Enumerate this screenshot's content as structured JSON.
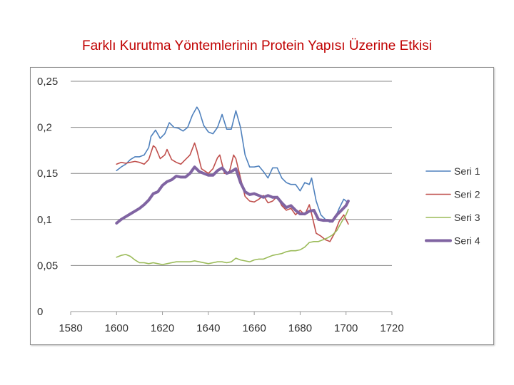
{
  "chart_data": {
    "type": "line",
    "title": "Farklı Kurutma Yöntemlerinin Protein Yapısı Üzerine Etkisi",
    "xlabel": "",
    "ylabel": "",
    "xlim": [
      1580,
      1720
    ],
    "ylim": [
      0,
      0.25
    ],
    "xticks": [
      "1580",
      "1600",
      "1620",
      "1640",
      "1660",
      "1680",
      "1700",
      "1720"
    ],
    "yticks": [
      "0",
      "0,05",
      "0,1",
      "0,15",
      "0,2",
      "0,25"
    ],
    "grid": true,
    "legend": "right",
    "series": [
      {
        "name": "Seri 1",
        "color": "#4f81bd",
        "width": 1.6,
        "points": [
          [
            1600,
            0.153
          ],
          [
            1602,
            0.157
          ],
          [
            1604,
            0.16
          ],
          [
            1606,
            0.165
          ],
          [
            1608,
            0.168
          ],
          [
            1610,
            0.168
          ],
          [
            1612,
            0.17
          ],
          [
            1614,
            0.178
          ],
          [
            1615,
            0.19
          ],
          [
            1617,
            0.197
          ],
          [
            1619,
            0.188
          ],
          [
            1621,
            0.193
          ],
          [
            1623,
            0.205
          ],
          [
            1625,
            0.2
          ],
          [
            1627,
            0.199
          ],
          [
            1629,
            0.196
          ],
          [
            1631,
            0.2
          ],
          [
            1633,
            0.213
          ],
          [
            1635,
            0.222
          ],
          [
            1636,
            0.218
          ],
          [
            1638,
            0.202
          ],
          [
            1640,
            0.195
          ],
          [
            1642,
            0.193
          ],
          [
            1644,
            0.2
          ],
          [
            1646,
            0.214
          ],
          [
            1648,
            0.198
          ],
          [
            1650,
            0.198
          ],
          [
            1652,
            0.218
          ],
          [
            1654,
            0.2
          ],
          [
            1656,
            0.17
          ],
          [
            1658,
            0.157
          ],
          [
            1660,
            0.157
          ],
          [
            1662,
            0.158
          ],
          [
            1664,
            0.152
          ],
          [
            1666,
            0.145
          ],
          [
            1668,
            0.156
          ],
          [
            1670,
            0.156
          ],
          [
            1672,
            0.145
          ],
          [
            1674,
            0.14
          ],
          [
            1676,
            0.138
          ],
          [
            1678,
            0.138
          ],
          [
            1680,
            0.131
          ],
          [
            1682,
            0.14
          ],
          [
            1684,
            0.138
          ],
          [
            1685,
            0.145
          ],
          [
            1687,
            0.12
          ],
          [
            1689,
            0.105
          ],
          [
            1691,
            0.1
          ],
          [
            1693,
            0.097
          ],
          [
            1695,
            0.1
          ],
          [
            1697,
            0.112
          ],
          [
            1699,
            0.122
          ],
          [
            1701,
            0.118
          ]
        ]
      },
      {
        "name": "Seri 2",
        "color": "#c0504d",
        "width": 1.6,
        "points": [
          [
            1600,
            0.16
          ],
          [
            1602,
            0.162
          ],
          [
            1604,
            0.161
          ],
          [
            1606,
            0.162
          ],
          [
            1608,
            0.163
          ],
          [
            1610,
            0.162
          ],
          [
            1612,
            0.16
          ],
          [
            1614,
            0.165
          ],
          [
            1616,
            0.18
          ],
          [
            1617,
            0.178
          ],
          [
            1619,
            0.166
          ],
          [
            1621,
            0.17
          ],
          [
            1622,
            0.176
          ],
          [
            1624,
            0.165
          ],
          [
            1626,
            0.162
          ],
          [
            1628,
            0.16
          ],
          [
            1630,
            0.165
          ],
          [
            1632,
            0.17
          ],
          [
            1634,
            0.183
          ],
          [
            1635,
            0.175
          ],
          [
            1637,
            0.155
          ],
          [
            1640,
            0.15
          ],
          [
            1642,
            0.155
          ],
          [
            1644,
            0.167
          ],
          [
            1645,
            0.17
          ],
          [
            1647,
            0.15
          ],
          [
            1649,
            0.15
          ],
          [
            1651,
            0.17
          ],
          [
            1652,
            0.166
          ],
          [
            1654,
            0.145
          ],
          [
            1656,
            0.125
          ],
          [
            1658,
            0.12
          ],
          [
            1660,
            0.119
          ],
          [
            1662,
            0.122
          ],
          [
            1664,
            0.126
          ],
          [
            1666,
            0.118
          ],
          [
            1668,
            0.12
          ],
          [
            1670,
            0.125
          ],
          [
            1672,
            0.115
          ],
          [
            1674,
            0.11
          ],
          [
            1676,
            0.112
          ],
          [
            1678,
            0.105
          ],
          [
            1680,
            0.11
          ],
          [
            1682,
            0.105
          ],
          [
            1684,
            0.116
          ],
          [
            1685,
            0.106
          ],
          [
            1687,
            0.085
          ],
          [
            1689,
            0.082
          ],
          [
            1691,
            0.078
          ],
          [
            1693,
            0.076
          ],
          [
            1695,
            0.085
          ],
          [
            1697,
            0.098
          ],
          [
            1699,
            0.105
          ],
          [
            1701,
            0.095
          ]
        ]
      },
      {
        "name": "Seri 3",
        "color": "#9bbb59",
        "width": 1.6,
        "points": [
          [
            1600,
            0.059
          ],
          [
            1602,
            0.061
          ],
          [
            1604,
            0.062
          ],
          [
            1606,
            0.06
          ],
          [
            1608,
            0.056
          ],
          [
            1610,
            0.053
          ],
          [
            1612,
            0.053
          ],
          [
            1614,
            0.052
          ],
          [
            1616,
            0.053
          ],
          [
            1618,
            0.052
          ],
          [
            1620,
            0.051
          ],
          [
            1622,
            0.052
          ],
          [
            1624,
            0.053
          ],
          [
            1626,
            0.054
          ],
          [
            1628,
            0.054
          ],
          [
            1630,
            0.054
          ],
          [
            1632,
            0.054
          ],
          [
            1634,
            0.055
          ],
          [
            1636,
            0.054
          ],
          [
            1638,
            0.053
          ],
          [
            1640,
            0.052
          ],
          [
            1642,
            0.053
          ],
          [
            1644,
            0.054
          ],
          [
            1646,
            0.054
          ],
          [
            1648,
            0.053
          ],
          [
            1650,
            0.054
          ],
          [
            1652,
            0.058
          ],
          [
            1654,
            0.056
          ],
          [
            1656,
            0.055
          ],
          [
            1658,
            0.054
          ],
          [
            1660,
            0.056
          ],
          [
            1662,
            0.057
          ],
          [
            1664,
            0.057
          ],
          [
            1666,
            0.059
          ],
          [
            1668,
            0.061
          ],
          [
            1670,
            0.062
          ],
          [
            1672,
            0.063
          ],
          [
            1674,
            0.065
          ],
          [
            1676,
            0.066
          ],
          [
            1678,
            0.066
          ],
          [
            1680,
            0.067
          ],
          [
            1682,
            0.07
          ],
          [
            1684,
            0.075
          ],
          [
            1686,
            0.076
          ],
          [
            1688,
            0.076
          ],
          [
            1690,
            0.078
          ],
          [
            1692,
            0.08
          ],
          [
            1694,
            0.083
          ],
          [
            1696,
            0.088
          ],
          [
            1698,
            0.097
          ],
          [
            1700,
            0.105
          ],
          [
            1701,
            0.111
          ]
        ]
      },
      {
        "name": "Seri 4",
        "color": "#8064a2",
        "width": 4,
        "points": [
          [
            1600,
            0.096
          ],
          [
            1602,
            0.1
          ],
          [
            1604,
            0.103
          ],
          [
            1606,
            0.106
          ],
          [
            1608,
            0.109
          ],
          [
            1610,
            0.112
          ],
          [
            1612,
            0.116
          ],
          [
            1614,
            0.121
          ],
          [
            1616,
            0.128
          ],
          [
            1618,
            0.13
          ],
          [
            1620,
            0.137
          ],
          [
            1622,
            0.141
          ],
          [
            1624,
            0.143
          ],
          [
            1626,
            0.147
          ],
          [
            1628,
            0.146
          ],
          [
            1630,
            0.146
          ],
          [
            1632,
            0.15
          ],
          [
            1634,
            0.157
          ],
          [
            1636,
            0.152
          ],
          [
            1638,
            0.15
          ],
          [
            1640,
            0.148
          ],
          [
            1642,
            0.148
          ],
          [
            1644,
            0.153
          ],
          [
            1646,
            0.156
          ],
          [
            1648,
            0.15
          ],
          [
            1650,
            0.152
          ],
          [
            1652,
            0.155
          ],
          [
            1654,
            0.14
          ],
          [
            1656,
            0.13
          ],
          [
            1658,
            0.127
          ],
          [
            1660,
            0.128
          ],
          [
            1662,
            0.126
          ],
          [
            1664,
            0.124
          ],
          [
            1666,
            0.126
          ],
          [
            1668,
            0.124
          ],
          [
            1670,
            0.124
          ],
          [
            1672,
            0.118
          ],
          [
            1674,
            0.113
          ],
          [
            1676,
            0.115
          ],
          [
            1678,
            0.11
          ],
          [
            1680,
            0.106
          ],
          [
            1682,
            0.106
          ],
          [
            1684,
            0.109
          ],
          [
            1686,
            0.11
          ],
          [
            1688,
            0.1
          ],
          [
            1690,
            0.099
          ],
          [
            1692,
            0.099
          ],
          [
            1694,
            0.098
          ],
          [
            1696,
            0.105
          ],
          [
            1698,
            0.11
          ],
          [
            1700,
            0.115
          ],
          [
            1701,
            0.12
          ]
        ]
      }
    ]
  }
}
